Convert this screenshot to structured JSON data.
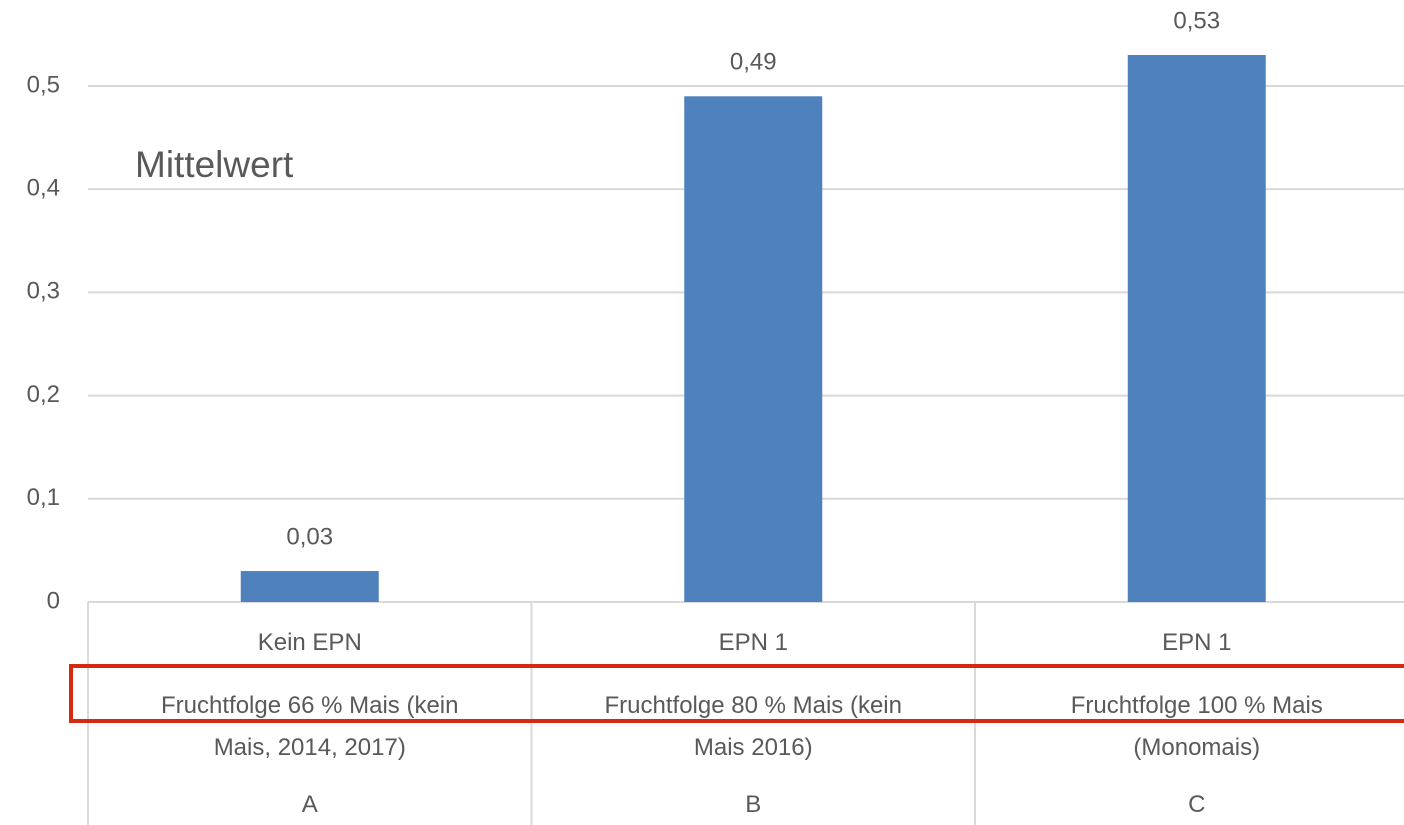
{
  "chart_data": {
    "type": "bar",
    "annotation": "Mittelwert",
    "categories": [
      [
        "Kein EPN",
        "Fruchtfolge  66 % Mais (kein Mais, 2014, 2017)",
        "A"
      ],
      [
        "EPN 1",
        "Fruchtfolge  80 % Mais (kein Mais 2016)",
        "B"
      ],
      [
        "EPN 1",
        "Fruchtfolge  100 % Mais (Monomais)",
        "C"
      ]
    ],
    "values": [
      0.03,
      0.49,
      0.53
    ],
    "value_labels": [
      "0,03",
      "0,49",
      "0,53"
    ],
    "color": "#4f81bd",
    "ylim": [
      0,
      0.58
    ],
    "yticks": [
      {
        "value": 0,
        "label": "0"
      },
      {
        "value": 0.1,
        "label": "0,1"
      },
      {
        "value": 0.2,
        "label": "0,2"
      },
      {
        "value": 0.3,
        "label": "0,3"
      },
      {
        "value": 0.4,
        "label": "0,4"
      },
      {
        "value": 0.5,
        "label": "0,5"
      }
    ],
    "grid": true
  }
}
